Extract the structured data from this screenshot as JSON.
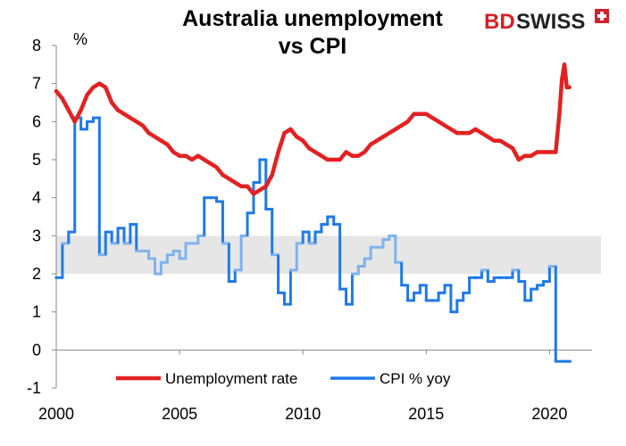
{
  "chart_data": {
    "type": "line",
    "title": "Australia unemployment vs CPI",
    "title_lines": [
      "Australia unemployment",
      "vs CPI"
    ],
    "ylabel": "%",
    "xlim": [
      2000,
      2021
    ],
    "ylim": [
      -1,
      8
    ],
    "x_ticks": [
      2000,
      2005,
      2010,
      2015,
      2020
    ],
    "y_ticks": [
      -1,
      0,
      1,
      2,
      3,
      4,
      5,
      6,
      7,
      8
    ],
    "shaded_band": [
      2,
      3
    ],
    "grid": false,
    "legend_position": "bottom",
    "colors": {
      "unemployment": "#e32121",
      "cpi": "#1f7ae8",
      "cpi_in_band": "#7fb3ee",
      "band": "#e6e6e6"
    },
    "series": [
      {
        "name": "Unemployment rate",
        "x": [
          2000.0,
          2000.25,
          2000.5,
          2000.75,
          2001.0,
          2001.25,
          2001.5,
          2001.75,
          2002.0,
          2002.25,
          2002.5,
          2002.75,
          2003.0,
          2003.25,
          2003.5,
          2003.75,
          2004.0,
          2004.25,
          2004.5,
          2004.75,
          2005.0,
          2005.25,
          2005.5,
          2005.75,
          2006.0,
          2006.25,
          2006.5,
          2006.75,
          2007.0,
          2007.25,
          2007.5,
          2007.75,
          2008.0,
          2008.25,
          2008.5,
          2008.75,
          2009.0,
          2009.25,
          2009.5,
          2009.75,
          2010.0,
          2010.25,
          2010.5,
          2010.75,
          2011.0,
          2011.25,
          2011.5,
          2011.75,
          2012.0,
          2012.25,
          2012.5,
          2012.75,
          2013.0,
          2013.25,
          2013.5,
          2013.75,
          2014.0,
          2014.25,
          2014.5,
          2014.75,
          2015.0,
          2015.25,
          2015.5,
          2015.75,
          2016.0,
          2016.25,
          2016.5,
          2016.75,
          2017.0,
          2017.25,
          2017.5,
          2017.75,
          2018.0,
          2018.25,
          2018.5,
          2018.75,
          2019.0,
          2019.25,
          2019.5,
          2019.75,
          2020.0,
          2020.25,
          2020.4,
          2020.5,
          2020.6,
          2020.7,
          2020.8
        ],
        "values": [
          6.8,
          6.6,
          6.3,
          6.0,
          6.3,
          6.7,
          6.9,
          7.0,
          6.9,
          6.5,
          6.3,
          6.2,
          6.1,
          6.0,
          5.9,
          5.7,
          5.6,
          5.5,
          5.4,
          5.2,
          5.1,
          5.1,
          5.0,
          5.1,
          5.0,
          4.9,
          4.8,
          4.6,
          4.5,
          4.4,
          4.3,
          4.3,
          4.1,
          4.2,
          4.3,
          4.6,
          5.2,
          5.7,
          5.8,
          5.6,
          5.5,
          5.3,
          5.2,
          5.1,
          5.0,
          5.0,
          5.0,
          5.2,
          5.1,
          5.1,
          5.2,
          5.4,
          5.5,
          5.6,
          5.7,
          5.8,
          5.9,
          6.0,
          6.2,
          6.2,
          6.2,
          6.1,
          6.0,
          5.9,
          5.8,
          5.7,
          5.7,
          5.7,
          5.8,
          5.7,
          5.6,
          5.5,
          5.5,
          5.4,
          5.3,
          5.0,
          5.1,
          5.1,
          5.2,
          5.2,
          5.2,
          5.2,
          6.2,
          7.1,
          7.5,
          6.9,
          6.9
        ]
      },
      {
        "name": "CPI % yoy",
        "x": [
          2000.0,
          2000.25,
          2000.5,
          2000.75,
          2001.0,
          2001.25,
          2001.5,
          2001.75,
          2002.0,
          2002.25,
          2002.5,
          2002.75,
          2003.0,
          2003.25,
          2003.5,
          2003.75,
          2004.0,
          2004.25,
          2004.5,
          2004.75,
          2005.0,
          2005.25,
          2005.5,
          2005.75,
          2006.0,
          2006.25,
          2006.5,
          2006.75,
          2007.0,
          2007.25,
          2007.5,
          2007.75,
          2008.0,
          2008.25,
          2008.5,
          2008.75,
          2009.0,
          2009.25,
          2009.5,
          2009.75,
          2010.0,
          2010.25,
          2010.5,
          2010.75,
          2011.0,
          2011.25,
          2011.5,
          2011.75,
          2012.0,
          2012.25,
          2012.5,
          2012.75,
          2013.0,
          2013.25,
          2013.5,
          2013.75,
          2014.0,
          2014.25,
          2014.5,
          2014.75,
          2015.0,
          2015.25,
          2015.5,
          2015.75,
          2016.0,
          2016.25,
          2016.5,
          2016.75,
          2017.0,
          2017.25,
          2017.5,
          2017.75,
          2018.0,
          2018.25,
          2018.5,
          2018.75,
          2019.0,
          2019.25,
          2019.5,
          2019.75,
          2020.0,
          2020.25,
          2020.5,
          2020.75
        ],
        "values": [
          1.9,
          2.8,
          3.1,
          6.1,
          5.8,
          6.0,
          6.1,
          2.5,
          3.1,
          2.8,
          3.2,
          2.8,
          3.3,
          2.6,
          2.6,
          2.4,
          2.0,
          2.3,
          2.5,
          2.6,
          2.4,
          2.8,
          2.8,
          3.0,
          4.0,
          4.0,
          3.9,
          2.8,
          1.8,
          2.1,
          3.0,
          3.6,
          4.4,
          5.0,
          3.7,
          2.5,
          1.5,
          1.2,
          2.1,
          2.8,
          3.1,
          2.8,
          3.1,
          3.3,
          3.5,
          3.3,
          1.6,
          1.2,
          2.0,
          2.2,
          2.4,
          2.7,
          2.7,
          2.9,
          3.0,
          2.3,
          1.7,
          1.3,
          1.5,
          1.7,
          1.3,
          1.3,
          1.5,
          1.7,
          1.0,
          1.3,
          1.5,
          1.9,
          1.9,
          2.1,
          1.8,
          1.9,
          1.9,
          1.9,
          2.1,
          1.8,
          1.3,
          1.6,
          1.7,
          1.8,
          2.2,
          -0.3,
          -0.3,
          -0.3
        ]
      }
    ]
  },
  "brand": {
    "text": "BDSWISS",
    "prefix": "BD",
    "suffix": "SWISS"
  }
}
